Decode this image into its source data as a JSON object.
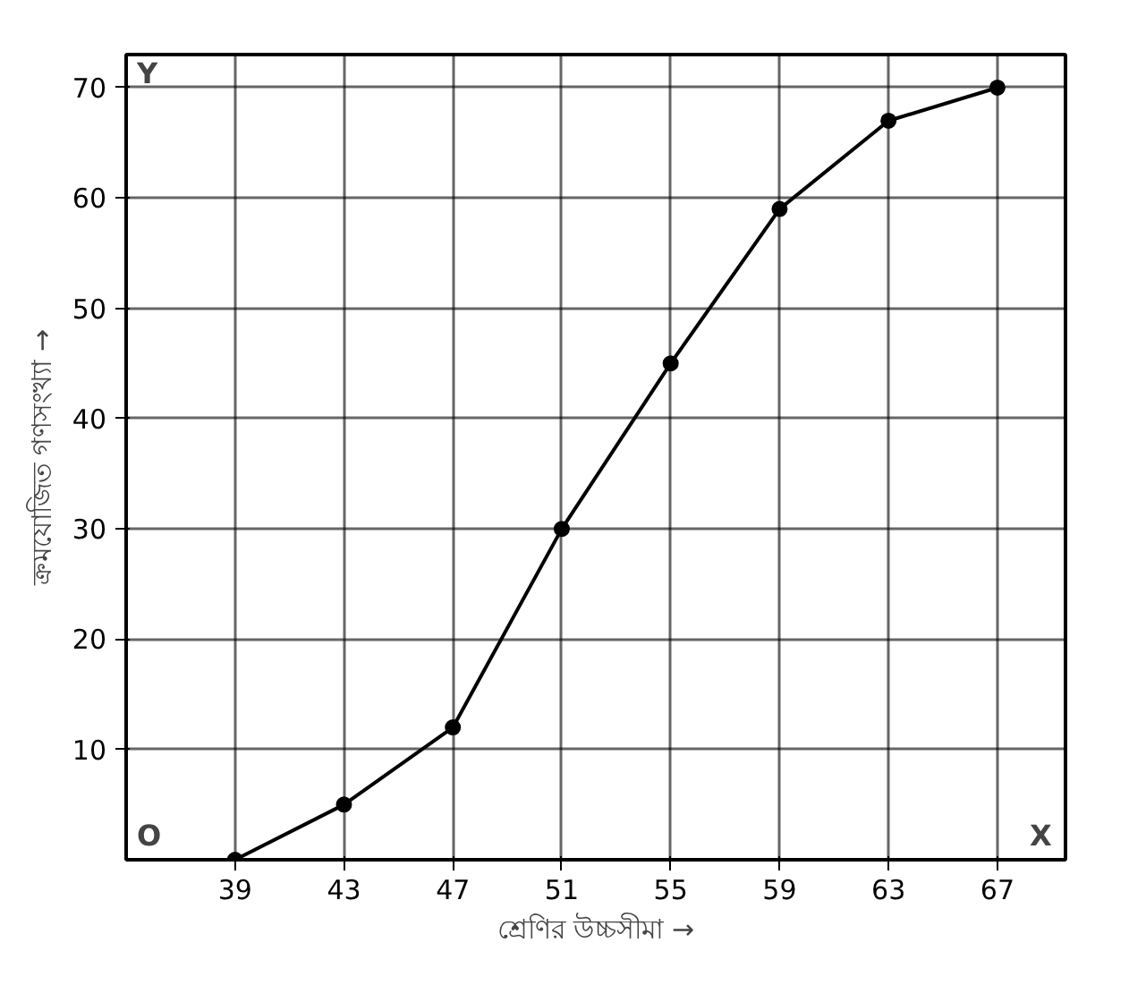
{
  "chart_data": {
    "type": "line",
    "xlabel": "শ্রেণির উচ্চসীমা →",
    "ylabel": "ক্রমযোজিত গণসংখ্যা →",
    "x": [
      39,
      43,
      47,
      51,
      55,
      59,
      63,
      67
    ],
    "series": [
      {
        "color": "#000000",
        "values": [
          0,
          5,
          12,
          30,
          45,
          59,
          67,
          70
        ]
      }
    ],
    "xlim": [
      35,
      69.5
    ],
    "ylim": [
      0,
      73
    ],
    "xticks": [
      39,
      43,
      47,
      51,
      55,
      59,
      63,
      67
    ],
    "yticks": [
      10,
      20,
      30,
      40,
      50,
      60,
      70
    ],
    "annotations": [
      "O",
      "X",
      "Y"
    ],
    "grid": true,
    "marker": "circle",
    "line_style": "solid"
  }
}
